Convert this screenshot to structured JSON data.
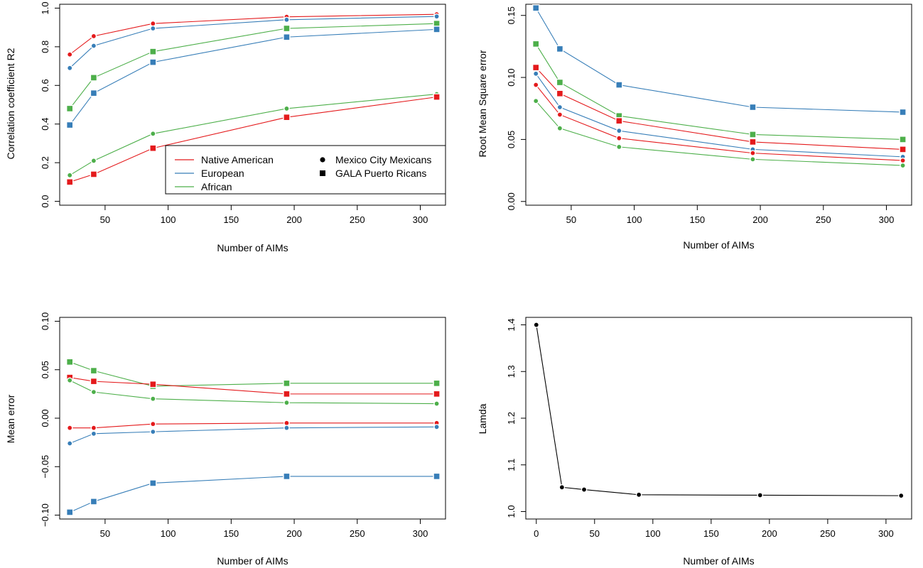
{
  "colors": {
    "native_american": "#E41A1C",
    "european": "#377EB8",
    "african": "#4DAF4A",
    "black": "#000000"
  },
  "chart_data": [
    {
      "type": "line",
      "xlabel": "Number of AIMs",
      "ylabel": "Correlation coefficient R2",
      "xlim": [
        14,
        320
      ],
      "ylim": [
        -0.02,
        1.02
      ],
      "xticks": [
        50,
        100,
        150,
        200,
        250,
        300
      ],
      "yticks": [
        0.0,
        0.2,
        0.4,
        0.6,
        0.8,
        1.0
      ],
      "x": [
        22,
        41,
        88,
        194,
        313
      ],
      "series": [
        {
          "group": "Native American",
          "marker": "circle",
          "color": "#E41A1C",
          "values": [
            0.76,
            0.855,
            0.92,
            0.955,
            0.968
          ]
        },
        {
          "group": "European",
          "marker": "circle",
          "color": "#377EB8",
          "values": [
            0.69,
            0.805,
            0.895,
            0.94,
            0.957
          ]
        },
        {
          "group": "African",
          "marker": "square",
          "color": "#4DAF4A",
          "values": [
            0.48,
            0.64,
            0.775,
            0.895,
            0.92
          ]
        },
        {
          "group": "European",
          "marker": "square",
          "color": "#377EB8",
          "values": [
            0.395,
            0.56,
            0.72,
            0.85,
            0.89
          ]
        },
        {
          "group": "African",
          "marker": "circle",
          "color": "#4DAF4A",
          "values": [
            0.135,
            0.21,
            0.35,
            0.48,
            0.555
          ]
        },
        {
          "group": "Native American",
          "marker": "square",
          "color": "#E41A1C",
          "values": [
            0.1,
            0.14,
            0.275,
            0.435,
            0.54
          ]
        }
      ],
      "legend": {
        "position": "bottom-right",
        "lines": [
          {
            "label": "Native American",
            "color": "#E41A1C"
          },
          {
            "label": "European",
            "color": "#377EB8"
          },
          {
            "label": "African",
            "color": "#4DAF4A"
          }
        ],
        "markers": [
          {
            "label": "Mexico City Mexicans",
            "marker": "circle"
          },
          {
            "label": "GALA Puerto Ricans",
            "marker": "square"
          }
        ]
      }
    },
    {
      "type": "line",
      "xlabel": "Number of AIMs",
      "ylabel": "Root Mean Square error",
      "xlim": [
        14,
        320
      ],
      "ylim": [
        -0.003,
        0.159
      ],
      "xticks": [
        50,
        100,
        150,
        200,
        250,
        300
      ],
      "yticks": [
        0.0,
        0.05,
        0.1,
        0.15
      ],
      "ytick_labels": [
        "0.00",
        "0.05",
        "0.10",
        "0.15"
      ],
      "x": [
        22,
        41,
        88,
        194,
        313
      ],
      "series": [
        {
          "group": "European",
          "marker": "square",
          "color": "#377EB8",
          "values": [
            0.156,
            0.123,
            0.094,
            0.076,
            0.072
          ]
        },
        {
          "group": "African",
          "marker": "square",
          "color": "#4DAF4A",
          "values": [
            0.127,
            0.096,
            0.069,
            0.054,
            0.05
          ]
        },
        {
          "group": "Native American",
          "marker": "square",
          "color": "#E41A1C",
          "values": [
            0.108,
            0.087,
            0.065,
            0.048,
            0.042
          ]
        },
        {
          "group": "European",
          "marker": "circle",
          "color": "#377EB8",
          "values": [
            0.103,
            0.076,
            0.057,
            0.042,
            0.036
          ]
        },
        {
          "group": "Native American",
          "marker": "circle",
          "color": "#E41A1C",
          "values": [
            0.094,
            0.07,
            0.051,
            0.039,
            0.033
          ]
        },
        {
          "group": "African",
          "marker": "circle",
          "color": "#4DAF4A",
          "values": [
            0.081,
            0.059,
            0.044,
            0.034,
            0.029
          ]
        }
      ]
    },
    {
      "type": "line",
      "xlabel": "Number of AIMs",
      "ylabel": "Mean error",
      "xlim": [
        14,
        320
      ],
      "ylim": [
        -0.104,
        0.104
      ],
      "xticks": [
        50,
        100,
        150,
        200,
        250,
        300
      ],
      "yticks": [
        -0.1,
        -0.05,
        0.0,
        0.05,
        0.1
      ],
      "ytick_labels": [
        "−0.10",
        "−0.05",
        "0.00",
        "0.05",
        "0.10"
      ],
      "x": [
        22,
        41,
        88,
        194,
        313
      ],
      "series": [
        {
          "group": "African",
          "marker": "square",
          "color": "#4DAF4A",
          "values": [
            0.058,
            0.049,
            0.033,
            0.036,
            0.036
          ]
        },
        {
          "group": "Native American",
          "marker": "square",
          "color": "#E41A1C",
          "values": [
            0.042,
            0.038,
            0.035,
            0.025,
            0.025
          ]
        },
        {
          "group": "African",
          "marker": "circle",
          "color": "#4DAF4A",
          "values": [
            0.039,
            0.027,
            0.02,
            0.016,
            0.015
          ]
        },
        {
          "group": "Native American",
          "marker": "circle",
          "color": "#E41A1C",
          "values": [
            -0.01,
            -0.01,
            -0.006,
            -0.005,
            -0.005
          ]
        },
        {
          "group": "European",
          "marker": "circle",
          "color": "#377EB8",
          "values": [
            -0.026,
            -0.016,
            -0.014,
            -0.01,
            -0.009
          ]
        },
        {
          "group": "European",
          "marker": "square",
          "color": "#377EB8",
          "values": [
            -0.097,
            -0.086,
            -0.067,
            -0.06,
            -0.06
          ]
        }
      ]
    },
    {
      "type": "line",
      "xlabel": "Number of AIMs",
      "ylabel": "Lamda",
      "xlim": [
        -9,
        322
      ],
      "ylim": [
        0.984,
        1.416
      ],
      "xticks": [
        0,
        50,
        100,
        150,
        200,
        250,
        300
      ],
      "yticks": [
        1.0,
        1.1,
        1.2,
        1.3,
        1.4
      ],
      "ytick_labels": [
        "1.0",
        "1.1",
        "1.2",
        "1.3",
        "1.4"
      ],
      "x": [
        0,
        22,
        41,
        88,
        192,
        313
      ],
      "series": [
        {
          "group": "Lamda",
          "marker": "circle",
          "color": "#000000",
          "values": [
            1.4,
            1.052,
            1.047,
            1.036,
            1.035,
            1.034
          ]
        }
      ]
    }
  ]
}
